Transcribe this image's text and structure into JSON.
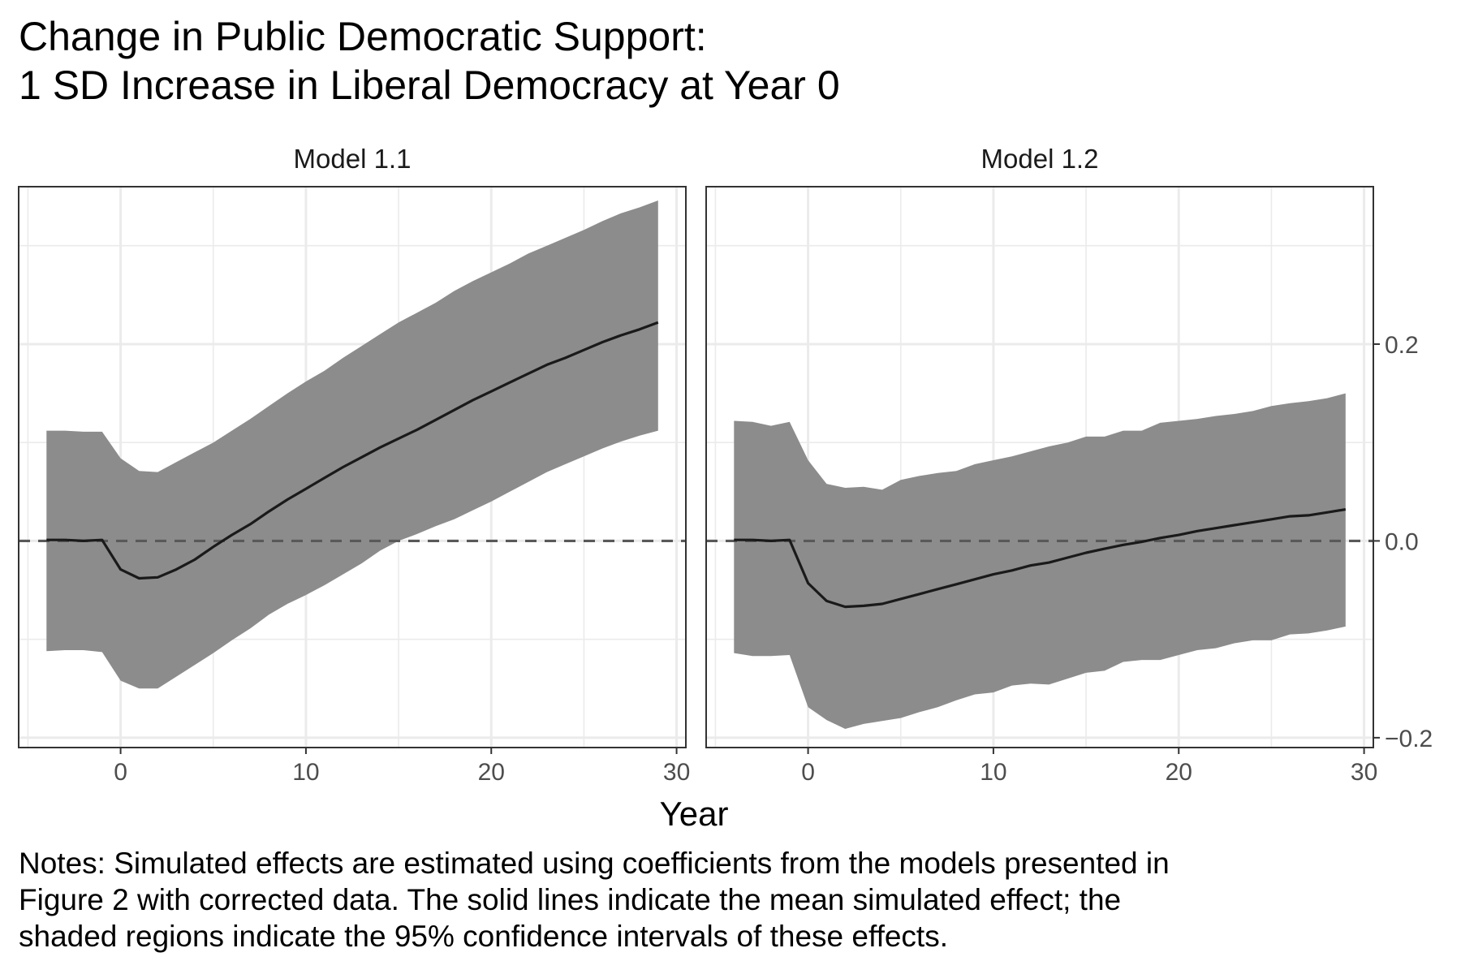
{
  "title_line1": "Change in Public Democratic Support:",
  "title_line2": "1 SD Increase in Liberal Democracy at Year 0",
  "x_axis_label": "Year",
  "notes": [
    "Notes: Simulated effects are estimated using coefficients from the models presented in",
    "Figure 2 with corrected data. The solid lines indicate the mean simulated effect; the",
    "shaded regions indicate the 95% confidence intervals of these effects."
  ],
  "colors": {
    "ribbon": "#8c8c8c",
    "line": "#1a1a1a",
    "zero_line": "#595959",
    "grid": "#ebebeb",
    "panel_border": "#333333"
  },
  "chart_data": [
    {
      "type": "line",
      "panel": "Model 1.1",
      "xlabel": "Year",
      "ylabel": "",
      "xlim": [
        -5.5,
        30.5
      ],
      "ylim": [
        -0.21,
        0.36
      ],
      "x_ticks": [
        0,
        10,
        20,
        30
      ],
      "y_ticks": [
        -0.2,
        0.0,
        0.2
      ],
      "y_tick_labels": [
        "−0.2",
        "0.0",
        "0.2"
      ],
      "show_y_tick_labels": false,
      "grid": true,
      "reference_line": {
        "y": 0,
        "style": "dashed"
      },
      "x": [
        -4,
        -3,
        -2,
        -1,
        0,
        1,
        2,
        3,
        4,
        5,
        6,
        7,
        8,
        9,
        10,
        11,
        12,
        13,
        14,
        15,
        16,
        17,
        18,
        19,
        20,
        21,
        22,
        23,
        24,
        25,
        26,
        27,
        28,
        29
      ],
      "series": [
        {
          "role": "mean",
          "values": [
            0.001,
            0.001,
            0.0,
            0.001,
            -0.029,
            -0.038,
            -0.037,
            -0.029,
            -0.019,
            -0.006,
            0.006,
            0.017,
            0.03,
            0.042,
            0.053,
            0.064,
            0.075,
            0.085,
            0.095,
            0.104,
            0.113,
            0.123,
            0.133,
            0.143,
            0.152,
            0.161,
            0.17,
            0.179,
            0.186,
            0.194,
            0.202,
            0.209,
            0.215,
            0.222
          ]
        },
        {
          "role": "lower_95",
          "values": [
            -0.112,
            -0.111,
            -0.111,
            -0.113,
            -0.142,
            -0.15,
            -0.15,
            -0.138,
            -0.126,
            -0.114,
            -0.101,
            -0.089,
            -0.075,
            -0.064,
            -0.055,
            -0.045,
            -0.034,
            -0.023,
            -0.01,
            0.0,
            0.007,
            0.015,
            0.022,
            0.031,
            0.04,
            0.05,
            0.06,
            0.07,
            0.078,
            0.086,
            0.094,
            0.101,
            0.107,
            0.112
          ]
        },
        {
          "role": "upper_95",
          "values": [
            0.112,
            0.112,
            0.111,
            0.111,
            0.084,
            0.071,
            0.07,
            0.08,
            0.09,
            0.1,
            0.112,
            0.124,
            0.137,
            0.15,
            0.162,
            0.173,
            0.186,
            0.198,
            0.21,
            0.222,
            0.232,
            0.242,
            0.254,
            0.264,
            0.273,
            0.282,
            0.292,
            0.3,
            0.308,
            0.316,
            0.325,
            0.333,
            0.339,
            0.346
          ]
        }
      ]
    },
    {
      "type": "line",
      "panel": "Model 1.2",
      "xlabel": "Year",
      "ylabel": "",
      "xlim": [
        -5.5,
        30.5
      ],
      "ylim": [
        -0.21,
        0.36
      ],
      "x_ticks": [
        0,
        10,
        20,
        30
      ],
      "y_ticks": [
        -0.2,
        0.0,
        0.2
      ],
      "y_tick_labels": [
        "−0.2",
        "0.0",
        "0.2"
      ],
      "show_y_tick_labels": true,
      "grid": true,
      "reference_line": {
        "y": 0,
        "style": "dashed"
      },
      "x": [
        -4,
        -3,
        -2,
        -1,
        0,
        1,
        2,
        3,
        4,
        5,
        6,
        7,
        8,
        9,
        10,
        11,
        12,
        13,
        14,
        15,
        16,
        17,
        18,
        19,
        20,
        21,
        22,
        23,
        24,
        25,
        26,
        27,
        28,
        29
      ],
      "series": [
        {
          "role": "mean",
          "values": [
            0.001,
            0.001,
            0.0,
            0.001,
            -0.043,
            -0.061,
            -0.067,
            -0.066,
            -0.064,
            -0.059,
            -0.054,
            -0.049,
            -0.044,
            -0.039,
            -0.034,
            -0.03,
            -0.025,
            -0.022,
            -0.017,
            -0.012,
            -0.008,
            -0.004,
            -0.001,
            0.003,
            0.006,
            0.01,
            0.013,
            0.016,
            0.019,
            0.022,
            0.025,
            0.026,
            0.029,
            0.032
          ]
        },
        {
          "role": "lower_95",
          "values": [
            -0.114,
            -0.117,
            -0.117,
            -0.116,
            -0.169,
            -0.182,
            -0.191,
            -0.186,
            -0.183,
            -0.18,
            -0.174,
            -0.169,
            -0.162,
            -0.156,
            -0.154,
            -0.147,
            -0.145,
            -0.146,
            -0.14,
            -0.134,
            -0.132,
            -0.123,
            -0.121,
            -0.121,
            -0.116,
            -0.111,
            -0.109,
            -0.104,
            -0.101,
            -0.101,
            -0.095,
            -0.094,
            -0.091,
            -0.087
          ]
        },
        {
          "role": "upper_95",
          "values": [
            0.122,
            0.121,
            0.117,
            0.121,
            0.082,
            0.058,
            0.054,
            0.055,
            0.052,
            0.062,
            0.066,
            0.069,
            0.071,
            0.078,
            0.082,
            0.086,
            0.091,
            0.096,
            0.1,
            0.106,
            0.106,
            0.112,
            0.112,
            0.12,
            0.122,
            0.124,
            0.127,
            0.129,
            0.132,
            0.137,
            0.14,
            0.142,
            0.145,
            0.15
          ]
        }
      ]
    }
  ]
}
